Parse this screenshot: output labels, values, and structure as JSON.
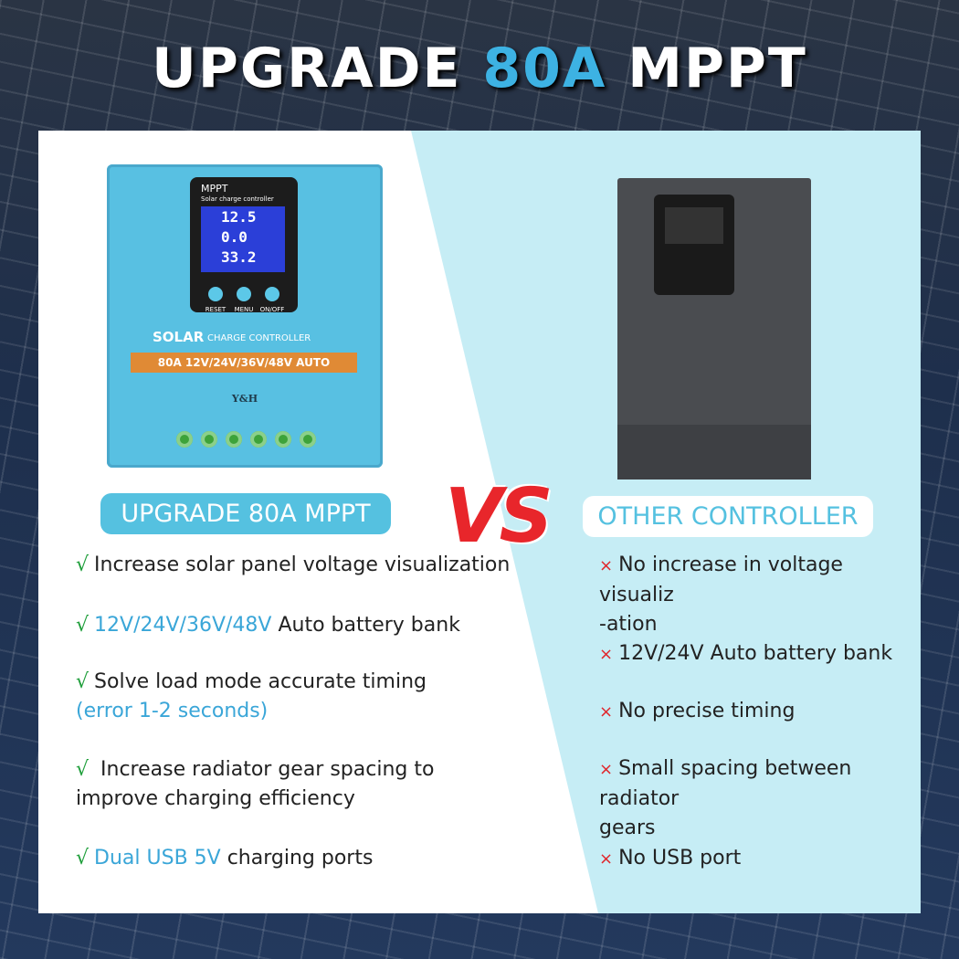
{
  "title": [
    {
      "text": "UPGRADE "
    },
    {
      "text": "80A",
      "accent": true
    },
    {
      "text": " MPPT"
    }
  ],
  "vs": "VS",
  "left": {
    "badge": "UPGRADE 80A MPPT",
    "marker": "√",
    "items": [
      [
        [
          {
            "text": "Increase solar panel voltage visualization"
          }
        ]
      ],
      [
        [
          {
            "text": "12V/24V/36V/48V",
            "accent": true
          },
          {
            "text": " Auto battery bank"
          }
        ]
      ],
      [
        [
          {
            "text": "Solve load mode accurate timing"
          }
        ],
        [
          {
            "text": "(error 1-2  seconds)",
            "accent": true
          }
        ]
      ],
      [
        [
          {
            "text": " Increase radiator gear spacing to"
          }
        ],
        [
          {
            "text": "improve charging efficiency"
          }
        ]
      ],
      [
        [
          {
            "text": "Dual USB 5V",
            "accent": true
          },
          {
            "text": " charging ports"
          }
        ]
      ]
    ]
  },
  "right": {
    "badge": "OTHER CONTROLLER",
    "marker": "×",
    "items": [
      [
        [
          {
            "text": "No increase in voltage visualiz"
          }
        ],
        [
          {
            "text": "-ation"
          }
        ]
      ],
      [
        [
          {
            "text": "12V/24V Auto battery bank"
          }
        ]
      ],
      [
        [
          {
            "text": "No precise timing"
          }
        ]
      ],
      [
        [
          {
            "text": "Small spacing between radiator"
          }
        ],
        [
          {
            "text": "gears"
          }
        ]
      ],
      [
        [
          {
            "text": "No USB port"
          }
        ]
      ]
    ]
  },
  "device": {
    "screen_title": "MPPT",
    "screen_subtitle": "Solar charge controller",
    "readings": [
      "12.5",
      "0.0",
      "33.2"
    ],
    "buttons": [
      "RESET",
      "MENU",
      "ON/OFF"
    ],
    "label_big": "SOLAR",
    "label_small": "CHARGE CONTROLLER",
    "spec": "80A 12V/24V/36V/48V  AUTO",
    "maker": "Y&H"
  }
}
